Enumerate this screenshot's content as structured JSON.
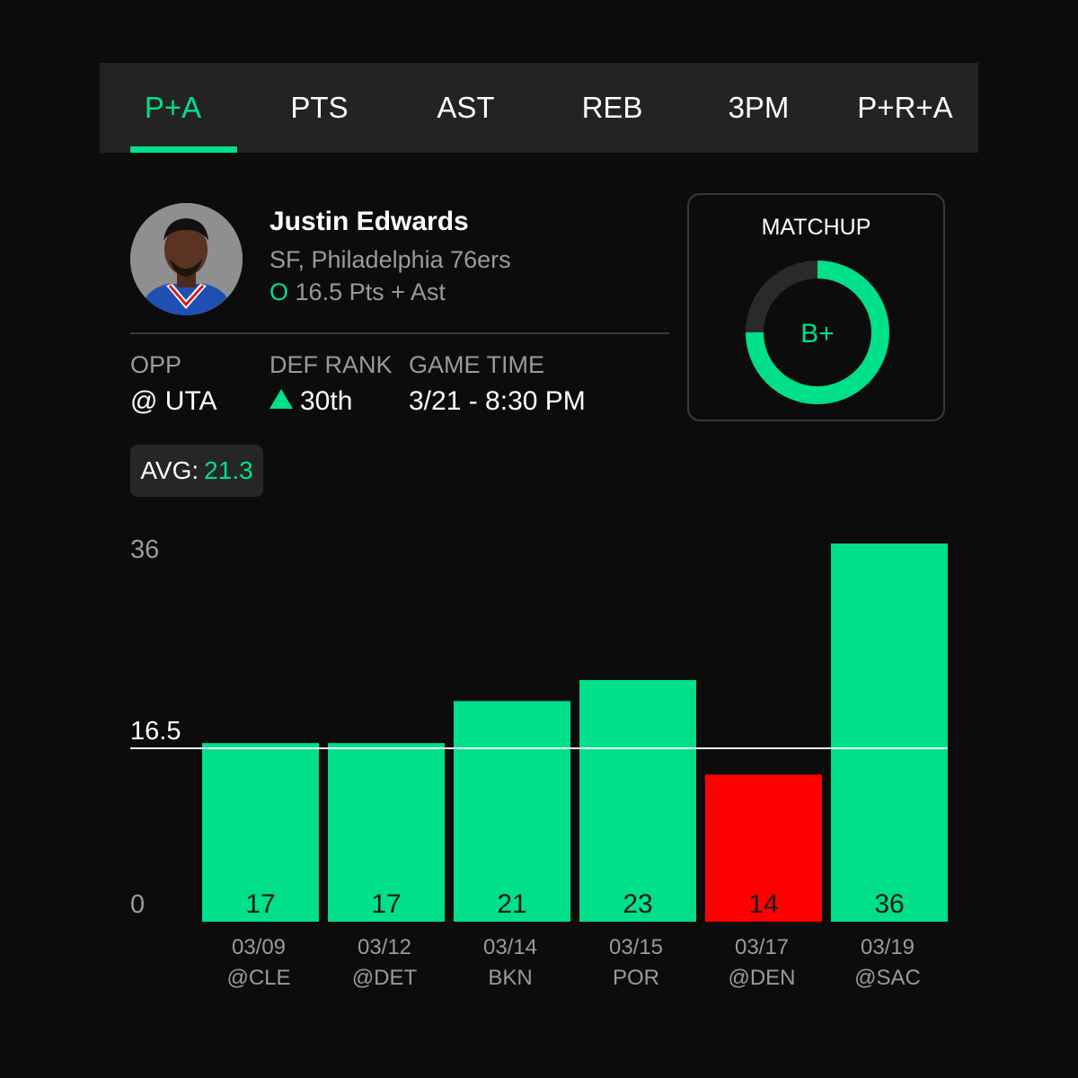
{
  "tabs": [
    {
      "label": "P+A",
      "active": true
    },
    {
      "label": "PTS",
      "active": false
    },
    {
      "label": "AST",
      "active": false
    },
    {
      "label": "REB",
      "active": false
    },
    {
      "label": "3PM",
      "active": false
    },
    {
      "label": "P+R+A",
      "active": false
    }
  ],
  "player": {
    "name": "Justin Edwards",
    "team_line": "SF, Philadelphia 76ers",
    "over_under": "O",
    "prop_line": "16.5 Pts + Ast"
  },
  "stats": {
    "opp_label": "OPP",
    "opp_value": "@ UTA",
    "def_rank_label": "DEF RANK",
    "def_rank_value": "30th",
    "game_time_label": "GAME TIME",
    "game_time_value": "3/21 - 8:30 PM"
  },
  "matchup": {
    "title": "MATCHUP",
    "grade": "B+",
    "ring_fill": 0.75
  },
  "average": {
    "label": "AVG:",
    "value": "21.3"
  },
  "chart_data": {
    "type": "bar",
    "categories": [
      "03/09",
      "03/12",
      "03/14",
      "03/15",
      "03/17",
      "03/19"
    ],
    "opponents": [
      "@CLE",
      "@DET",
      "BKN",
      "POR",
      "@DEN",
      "@SAC"
    ],
    "values": [
      17,
      17,
      21,
      23,
      14,
      36
    ],
    "line": 16.5,
    "line_label": "16.5",
    "ylim": [
      0,
      36
    ],
    "y_ticks": [
      "36",
      "0"
    ]
  },
  "colors": {
    "accent": "#00e08a",
    "miss": "#ff0000",
    "background": "#0c0c0c",
    "tabbar": "#232323"
  }
}
